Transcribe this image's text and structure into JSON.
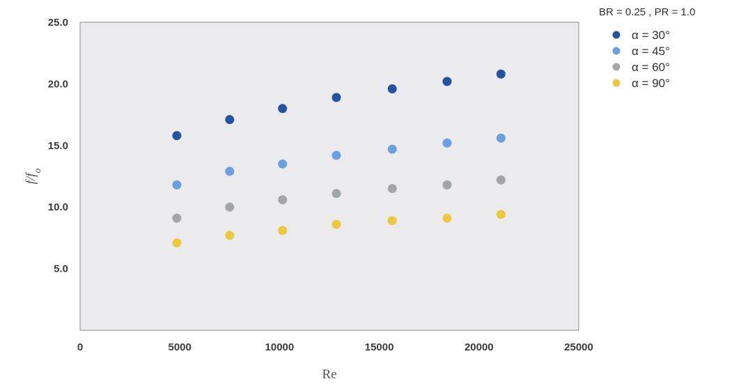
{
  "chart_data": {
    "type": "scatter",
    "xlabel": "Re",
    "ylabel": "f/f_o",
    "ylabel_main": "f/f",
    "ylabel_sub": "o",
    "xlim": [
      0,
      25000
    ],
    "ylim": [
      0,
      25
    ],
    "x_ticks": [
      0,
      5000,
      10000,
      15000,
      20000,
      25000
    ],
    "x_tick_labels": [
      "0",
      "5000",
      "10000",
      "15000",
      "20000",
      "25000"
    ],
    "y_ticks": [
      5,
      10,
      15,
      20,
      25
    ],
    "y_tick_labels": [
      "5.0",
      "10.0",
      "15.0",
      "20.0",
      "25.0"
    ],
    "grid": false,
    "legend_title": "BR = 0.25 , PR = 1.0",
    "legend_position": "top-right-outside",
    "x": [
      4850,
      7500,
      10150,
      12850,
      15650,
      18400,
      21100
    ],
    "series": [
      {
        "name": "α = 30°",
        "color": "#2454a0",
        "values": [
          15.8,
          17.1,
          18.0,
          18.9,
          19.6,
          20.2,
          20.8
        ]
      },
      {
        "name": "α = 45°",
        "color": "#6a9fe0",
        "values": [
          11.8,
          12.9,
          13.5,
          14.2,
          14.7,
          15.2,
          15.6
        ]
      },
      {
        "name": "α = 60°",
        "color": "#a3a6a6",
        "values": [
          9.1,
          10.0,
          10.6,
          11.1,
          11.5,
          11.8,
          12.2
        ]
      },
      {
        "name": "α = 90°",
        "color": "#ebc83d",
        "values": [
          7.1,
          7.7,
          8.1,
          8.6,
          8.9,
          9.1,
          9.4
        ]
      }
    ]
  }
}
